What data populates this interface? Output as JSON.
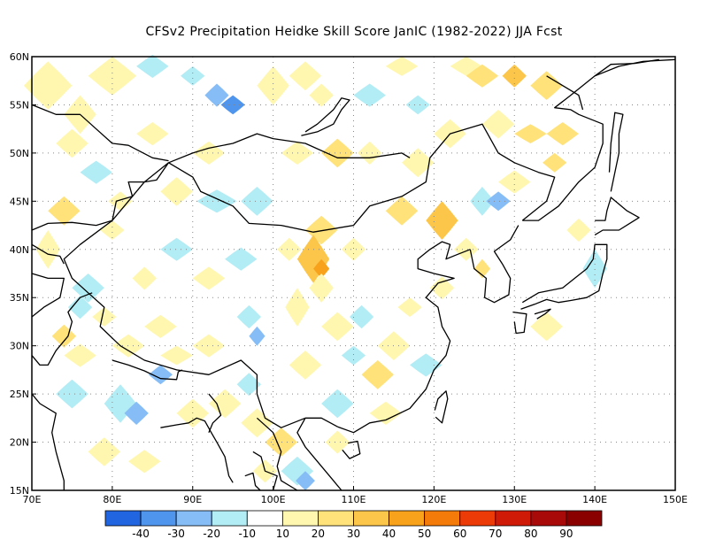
{
  "title": "CFSv2  Precipitation Heidke Skill Score JanIC (1982-2022) JJA Fcst",
  "map": {
    "lon_range": [
      70,
      150
    ],
    "lat_range": [
      15,
      60
    ],
    "lon_ticks": [
      "70E",
      "80E",
      "90E",
      "100E",
      "110E",
      "120E",
      "130E",
      "140E",
      "150E"
    ],
    "lat_ticks": [
      "15N",
      "20N",
      "25N",
      "30N",
      "35N",
      "40N",
      "45N",
      "50N",
      "55N",
      "60N"
    ],
    "gridlines": "dotted"
  },
  "colorbar": {
    "colors": [
      "#2166e0",
      "#4f95ee",
      "#86bdf7",
      "#b2ecf5",
      "#ffffff",
      "#fff7b0",
      "#ffe27a",
      "#fcc64a",
      "#f8a21c",
      "#f47a0a",
      "#ec3b06",
      "#cf1a07",
      "#a80a0a",
      "#8a0000"
    ],
    "labels": [
      "-40",
      "-30",
      "-20",
      "-10",
      "10",
      "20",
      "30",
      "40",
      "50",
      "60",
      "70",
      "80",
      "90"
    ]
  },
  "colors": {
    "border": "#000000",
    "grid": "#888888",
    "positive": "#fff2a8",
    "negative": "#b2ecf5"
  }
}
